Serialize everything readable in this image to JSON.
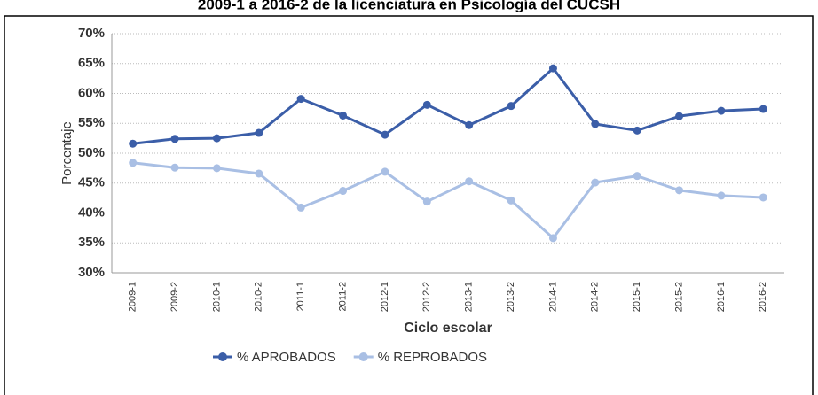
{
  "chart_data": {
    "type": "line",
    "title": "2009-1 a 2016-2 de la licenciatura en Psicología del CUCSH",
    "x_label": "Ciclo escolar",
    "y_label": "Porcentaje",
    "categories": [
      "2009-1",
      "2009-2",
      "2010-1",
      "2010-2",
      "2011-1",
      "2011-2",
      "2012-1",
      "2012-2",
      "2013-1",
      "2013-2",
      "2014-1",
      "2014-2",
      "2015-1",
      "2015-2",
      "2016-1",
      "2016-2"
    ],
    "series": [
      {
        "name": "% APROBADOS",
        "color": "#3b5ea8",
        "values": [
          51.6,
          52.4,
          52.5,
          53.4,
          59.1,
          56.3,
          53.1,
          58.1,
          54.7,
          57.9,
          64.2,
          54.9,
          53.8,
          56.2,
          57.1,
          57.4
        ]
      },
      {
        "name": "% REPROBADOS",
        "color": "#a9bfe4",
        "values": [
          48.4,
          47.6,
          47.5,
          46.6,
          40.9,
          43.7,
          46.9,
          41.9,
          45.3,
          42.1,
          35.8,
          45.1,
          46.2,
          43.8,
          42.9,
          42.6
        ]
      }
    ],
    "ylim": [
      30,
      70
    ],
    "yticks": [
      {
        "value": 30,
        "label": "30%"
      },
      {
        "value": 35,
        "label": "35%"
      },
      {
        "value": 40,
        "label": "40%"
      },
      {
        "value": 45,
        "label": "45%"
      },
      {
        "value": 50,
        "label": "50%"
      },
      {
        "value": 55,
        "label": "55%"
      },
      {
        "value": 60,
        "label": "60%"
      },
      {
        "value": 65,
        "label": "65%"
      },
      {
        "value": 70,
        "label": "70%"
      }
    ],
    "grid": true,
    "legend": "bottom"
  }
}
